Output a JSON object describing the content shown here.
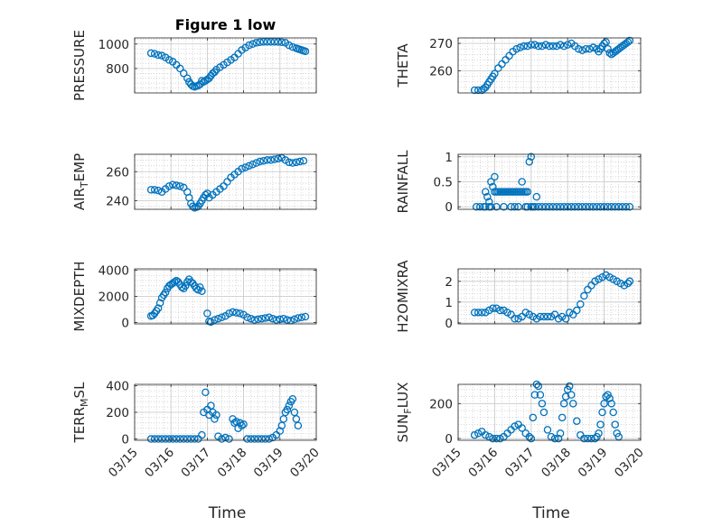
{
  "chart_data": [
    {
      "type": "scatter",
      "title": "Figure 1 low",
      "ylabel": "PRESSURE",
      "ylabel_sub": "",
      "xlabel": "",
      "xticks": [],
      "ylim": [
        600,
        1050
      ],
      "yticks": [
        800,
        1000
      ],
      "x": [
        0.45,
        0.55,
        0.65,
        0.75,
        0.85,
        0.95,
        1.05,
        1.15,
        1.25,
        1.35,
        1.45,
        1.5,
        1.55,
        1.6,
        1.65,
        1.7,
        1.75,
        1.8,
        1.85,
        1.9,
        1.95,
        2.0,
        2.05,
        2.1,
        2.15,
        2.2,
        2.25,
        2.35,
        2.45,
        2.55,
        2.65,
        2.75,
        2.85,
        2.95,
        3.05,
        3.15,
        3.25,
        3.35,
        3.45,
        3.55,
        3.65,
        3.75,
        3.85,
        3.95,
        4.05,
        4.15,
        4.25,
        4.35,
        4.45,
        4.5,
        4.55,
        4.6,
        4.65,
        4.7
      ],
      "y": [
        925,
        920,
        910,
        905,
        890,
        870,
        855,
        830,
        800,
        760,
        720,
        690,
        670,
        655,
        650,
        655,
        660,
        670,
        700,
        690,
        700,
        710,
        720,
        740,
        760,
        770,
        790,
        810,
        830,
        850,
        870,
        890,
        920,
        950,
        970,
        990,
        1000,
        1010,
        1015,
        1018,
        1018,
        1018,
        1018,
        1017,
        1015,
        1010,
        990,
        975,
        965,
        960,
        955,
        950,
        945,
        940
      ],
      "color": "#0072BD"
    },
    {
      "type": "scatter",
      "title": "",
      "ylabel": "THETA",
      "ylabel_sub": "",
      "xlabel": "",
      "xticks": [],
      "ylim": [
        252,
        272
      ],
      "yticks": [
        260,
        270
      ],
      "x": [
        0.45,
        0.55,
        0.65,
        0.7,
        0.75,
        0.8,
        0.85,
        0.9,
        0.95,
        1.0,
        1.1,
        1.2,
        1.3,
        1.4,
        1.5,
        1.6,
        1.7,
        1.8,
        1.9,
        2.0,
        2.1,
        2.2,
        2.3,
        2.4,
        2.5,
        2.6,
        2.7,
        2.8,
        2.9,
        3.0,
        3.1,
        3.2,
        3.3,
        3.4,
        3.5,
        3.6,
        3.7,
        3.8,
        3.85,
        3.9,
        3.95,
        4.0,
        4.05,
        4.1,
        4.15,
        4.2,
        4.25,
        4.3,
        4.35,
        4.4,
        4.45,
        4.5,
        4.55,
        4.6,
        4.65,
        4.7
      ],
      "y": [
        253,
        253,
        253,
        253.5,
        254,
        255,
        256,
        257,
        258,
        259,
        261,
        262.5,
        264,
        265.5,
        267,
        268,
        268.5,
        269,
        269,
        269.5,
        269.5,
        269,
        269,
        269.5,
        269,
        269,
        269,
        269.5,
        269,
        269.5,
        270,
        269,
        268,
        267.5,
        268,
        268,
        268.5,
        268,
        267,
        268,
        269,
        270,
        270.5,
        268,
        266.5,
        266,
        266.5,
        267,
        267.5,
        268,
        268.5,
        269,
        269.5,
        270,
        270.5,
        271
      ],
      "color": "#0072BD"
    },
    {
      "type": "scatter",
      "title": "",
      "ylabel": "AIR",
      "ylabel_sub": "T",
      "ylabel_suffix": "EMP",
      "xlabel": "",
      "xticks": [],
      "ylim": [
        234,
        272
      ],
      "yticks": [
        240,
        260
      ],
      "x": [
        0.45,
        0.55,
        0.65,
        0.75,
        0.85,
        0.95,
        1.05,
        1.15,
        1.25,
        1.35,
        1.45,
        1.5,
        1.55,
        1.6,
        1.65,
        1.7,
        1.75,
        1.8,
        1.85,
        1.9,
        1.95,
        2.0,
        2.05,
        2.15,
        2.25,
        2.35,
        2.45,
        2.55,
        2.65,
        2.75,
        2.85,
        2.95,
        3.05,
        3.15,
        3.25,
        3.35,
        3.45,
        3.55,
        3.65,
        3.75,
        3.85,
        3.95,
        4.05,
        4.15,
        4.25,
        4.35,
        4.45,
        4.55,
        4.65
      ],
      "y": [
        247.5,
        247.5,
        247,
        246,
        248,
        250,
        251,
        250.5,
        250,
        249,
        246,
        242,
        238,
        236,
        235,
        235.5,
        236,
        238,
        240,
        242,
        244,
        245,
        242,
        244,
        246,
        248,
        250,
        253,
        256,
        258,
        260,
        262,
        263,
        264,
        265,
        266,
        267,
        267.5,
        268,
        268,
        268.5,
        269,
        269.5,
        268,
        266.5,
        266,
        266.5,
        267,
        267.5
      ],
      "color": "#0072BD"
    },
    {
      "type": "scatter",
      "title": "",
      "ylabel": "RAINFALL",
      "ylabel_sub": "",
      "xlabel": "",
      "xticks": [],
      "ylim": [
        -0.05,
        1.05
      ],
      "yticks": [
        0,
        0.5,
        1
      ],
      "x": [
        0.5,
        0.6,
        0.7,
        0.75,
        0.8,
        0.85,
        0.9,
        0.95,
        1.0,
        1.05,
        1.1,
        1.15,
        1.2,
        1.25,
        1.3,
        1.35,
        1.4,
        1.45,
        1.5,
        1.55,
        1.6,
        1.65,
        1.7,
        1.75,
        1.8,
        1.85,
        1.9,
        1.95,
        2.0,
        2.05,
        2.1,
        2.15,
        2.2,
        2.3,
        2.4,
        2.5,
        2.6,
        2.7,
        2.8,
        2.9,
        3.0,
        3.1,
        3.2,
        3.3,
        3.4,
        3.5,
        3.6,
        3.7,
        3.8,
        3.9,
        4.0,
        4.1,
        4.2,
        4.3,
        4.4,
        4.5,
        4.6,
        4.7,
        0.75,
        0.85,
        0.9,
        1.05,
        1.25,
        1.45,
        1.55,
        1.65,
        1.85,
        1.9,
        2.0,
        1.0,
        1.75
      ],
      "y": [
        0,
        0,
        0,
        0.3,
        0.2,
        0.1,
        0.5,
        0.4,
        0.3,
        0.3,
        0.3,
        0.3,
        0.3,
        0.3,
        0.3,
        0.3,
        0.3,
        0.3,
        0.3,
        0.3,
        0.3,
        0.3,
        0.3,
        0.3,
        0.3,
        0.3,
        0.3,
        0.9,
        1.0,
        0,
        0,
        0.2,
        0,
        0,
        0,
        0,
        0,
        0,
        0,
        0,
        0,
        0,
        0,
        0,
        0,
        0,
        0,
        0,
        0,
        0,
        0,
        0,
        0,
        0,
        0,
        0,
        0,
        0,
        0,
        0,
        0,
        0,
        0,
        0,
        0,
        0,
        0,
        0,
        0,
        0.6,
        0.5
      ],
      "color": "#0072BD"
    },
    {
      "type": "scatter",
      "title": "",
      "ylabel": "MIXDEPTH",
      "ylabel_sub": "",
      "xlabel": "",
      "xticks": [],
      "ylim": [
        -100,
        4100
      ],
      "yticks": [
        0,
        2000,
        4000
      ],
      "x": [
        0.45,
        0.5,
        0.55,
        0.6,
        0.65,
        0.7,
        0.75,
        0.8,
        0.85,
        0.9,
        0.95,
        1.0,
        1.05,
        1.1,
        1.15,
        1.2,
        1.25,
        1.3,
        1.35,
        1.4,
        1.45,
        1.5,
        1.55,
        1.6,
        1.65,
        1.7,
        1.75,
        1.8,
        1.85,
        2.0,
        2.05,
        2.1,
        2.2,
        2.3,
        2.4,
        2.5,
        2.6,
        2.7,
        2.8,
        2.9,
        3.0,
        3.1,
        3.2,
        3.3,
        3.4,
        3.5,
        3.6,
        3.7,
        3.8,
        3.9,
        4.0,
        4.1,
        4.2,
        4.3,
        4.4,
        4.5,
        4.6,
        4.7
      ],
      "y": [
        500,
        550,
        700,
        900,
        1100,
        1500,
        1900,
        2100,
        2300,
        2600,
        2800,
        2900,
        3000,
        3100,
        3200,
        3100,
        2900,
        2700,
        2600,
        2800,
        3100,
        3300,
        3100,
        3000,
        2800,
        2600,
        2500,
        2700,
        2400,
        700,
        100,
        50,
        200,
        300,
        400,
        500,
        700,
        800,
        750,
        700,
        600,
        400,
        300,
        200,
        250,
        300,
        350,
        400,
        300,
        200,
        250,
        300,
        200,
        150,
        250,
        350,
        400,
        450
      ],
      "color": "#0072BD"
    },
    {
      "type": "scatter",
      "title": "",
      "ylabel": "H2OMIXRA",
      "ylabel_sub": "",
      "xlabel": "",
      "xticks": [],
      "ylim": [
        -0.05,
        2.6
      ],
      "yticks": [
        0,
        1,
        2
      ],
      "x": [
        0.45,
        0.55,
        0.65,
        0.75,
        0.85,
        0.95,
        1.05,
        1.15,
        1.25,
        1.35,
        1.45,
        1.55,
        1.65,
        1.75,
        1.85,
        1.95,
        2.05,
        2.15,
        2.25,
        2.35,
        2.45,
        2.55,
        2.65,
        2.75,
        2.85,
        2.95,
        3.05,
        3.15,
        3.25,
        3.35,
        3.45,
        3.55,
        3.65,
        3.75,
        3.85,
        3.95,
        4.05,
        4.15,
        4.25,
        4.35,
        4.45,
        4.55,
        4.65,
        4.7
      ],
      "y": [
        0.5,
        0.5,
        0.5,
        0.5,
        0.6,
        0.7,
        0.7,
        0.6,
        0.6,
        0.5,
        0.4,
        0.2,
        0.2,
        0.3,
        0.5,
        0.4,
        0.3,
        0.2,
        0.3,
        0.3,
        0.3,
        0.3,
        0.4,
        0.2,
        0.3,
        0.2,
        0.5,
        0.4,
        0.6,
        0.9,
        1.3,
        1.6,
        1.8,
        2.0,
        2.1,
        2.2,
        2.3,
        2.2,
        2.1,
        2.0,
        1.9,
        1.8,
        1.9,
        2.0
      ],
      "color": "#0072BD"
    },
    {
      "type": "scatter",
      "title": "",
      "ylabel": "TERR",
      "ylabel_sub": "M",
      "ylabel_suffix": "SL",
      "xlabel": "Time",
      "ylim": [
        -10,
        410
      ],
      "yticks": [
        0,
        200,
        400
      ],
      "x": [
        0.45,
        0.55,
        0.65,
        0.75,
        0.85,
        0.95,
        1.05,
        1.15,
        1.25,
        1.35,
        1.45,
        1.55,
        1.65,
        1.75,
        1.85,
        1.9,
        1.95,
        2.0,
        2.05,
        2.1,
        2.15,
        2.2,
        2.25,
        2.3,
        2.4,
        2.5,
        2.6,
        2.7,
        2.75,
        2.8,
        2.85,
        2.9,
        2.95,
        3.0,
        3.1,
        3.2,
        3.3,
        3.4,
        3.5,
        3.6,
        3.7,
        3.8,
        3.9,
        4.0,
        4.05,
        4.1,
        4.15,
        4.2,
        4.25,
        4.3,
        4.35,
        4.4,
        4.45,
        4.5
      ],
      "y": [
        0,
        0,
        0,
        0,
        0,
        0,
        0,
        0,
        0,
        0,
        0,
        0,
        0,
        0,
        30,
        200,
        350,
        220,
        180,
        250,
        200,
        150,
        180,
        20,
        0,
        10,
        0,
        150,
        120,
        130,
        80,
        120,
        100,
        110,
        0,
        0,
        0,
        0,
        0,
        0,
        0,
        10,
        30,
        60,
        100,
        150,
        200,
        220,
        250,
        280,
        300,
        200,
        150,
        100
      ],
      "color": "#0072BD"
    },
    {
      "type": "scatter",
      "title": "",
      "ylabel": "SUN",
      "ylabel_sub": "F",
      "ylabel_suffix": "LUX",
      "xlabel": "Time",
      "ylim": [
        -10,
        310
      ],
      "yticks": [
        0,
        200
      ],
      "x": [
        0.45,
        0.55,
        0.65,
        0.75,
        0.85,
        0.95,
        1.05,
        1.15,
        1.25,
        1.35,
        1.45,
        1.55,
        1.65,
        1.75,
        1.85,
        1.95,
        2.0,
        2.05,
        2.1,
        2.15,
        2.2,
        2.25,
        2.3,
        2.35,
        2.45,
        2.55,
        2.65,
        2.75,
        2.8,
        2.85,
        2.9,
        2.95,
        3.0,
        3.05,
        3.1,
        3.15,
        3.25,
        3.35,
        3.45,
        3.55,
        3.65,
        3.75,
        3.8,
        3.85,
        3.9,
        3.95,
        4.0,
        4.05,
        4.1,
        4.15,
        4.2,
        4.25,
        4.3,
        4.35,
        4.4
      ],
      "y": [
        20,
        30,
        40,
        20,
        10,
        0,
        0,
        0,
        10,
        30,
        50,
        70,
        80,
        60,
        30,
        10,
        0,
        120,
        250,
        310,
        300,
        250,
        200,
        150,
        50,
        10,
        0,
        0,
        30,
        120,
        200,
        240,
        280,
        300,
        250,
        200,
        100,
        20,
        0,
        0,
        0,
        0,
        10,
        30,
        80,
        150,
        200,
        240,
        250,
        230,
        200,
        150,
        80,
        30,
        10
      ],
      "color": "#0072BD"
    }
  ],
  "shared_x": {
    "tick_labels": [
      "03/15",
      "03/16",
      "03/17",
      "03/18",
      "03/19",
      "03/20"
    ],
    "xlim": [
      0,
      5
    ]
  }
}
